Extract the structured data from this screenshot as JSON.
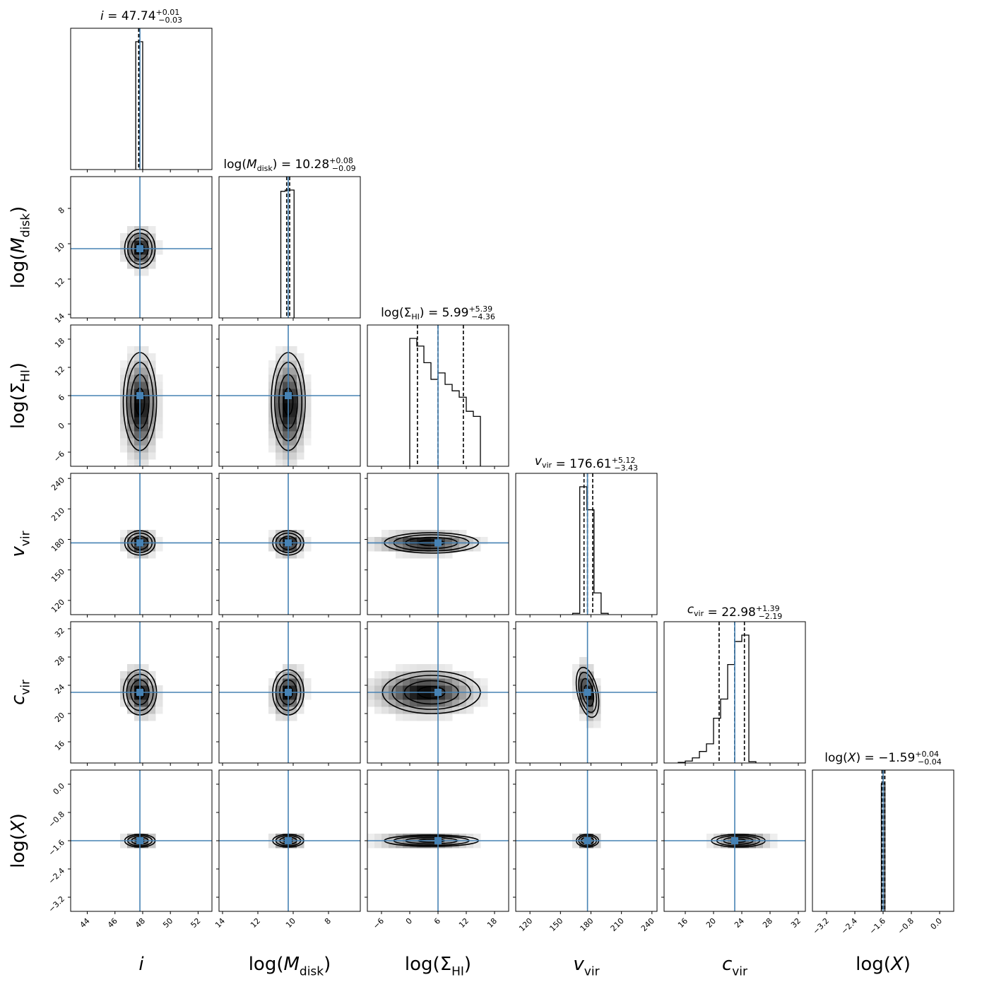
{
  "chart_data": {
    "type": "corner",
    "parameters": [
      {
        "key": "i",
        "axis_label": {
          "main": "i",
          "sub": "",
          "italic": true,
          "wrap": false
        },
        "title": {
          "prefix": "i",
          "sub": "",
          "italic": true,
          "wrap": false,
          "value": "47.74",
          "plus": "+0.01",
          "minus": "−0.03"
        },
        "median": 47.74,
        "err_plus": 0.01,
        "err_minus": 0.03,
        "truth": 47.8,
        "range": [
          42.8,
          53.0
        ],
        "inverted": false,
        "ticks": [
          44,
          46,
          48,
          50,
          52
        ],
        "tick_labels": [
          "44",
          "46",
          "48",
          "50",
          "52"
        ],
        "hist": {
          "edges": [
            47.5,
            48.0
          ],
          "counts": [
            1.0
          ]
        },
        "quantiles": [
          47.71,
          47.74,
          47.75
        ]
      },
      {
        "key": "log_Mdisk",
        "axis_label": {
          "main": "M",
          "sub": "disk",
          "italic": true,
          "wrap": true
        },
        "title": {
          "prefix": "M",
          "sub": "disk",
          "italic": true,
          "wrap": true,
          "value": "10.28",
          "plus": "+0.08",
          "minus": "−0.09"
        },
        "median": 10.28,
        "err_plus": 0.08,
        "err_minus": 0.09,
        "truth": 10.28,
        "range": [
          14.2,
          6.2
        ],
        "inverted": true,
        "ticks": [
          14,
          12,
          10,
          8
        ],
        "tick_labels": [
          "14",
          "12",
          "10",
          "8"
        ],
        "hist": {
          "edges": [
            10.7,
            10.45,
            9.95
          ],
          "counts": [
            0.99,
            1.0
          ]
        },
        "quantiles": [
          10.37,
          10.28,
          10.2
        ]
      },
      {
        "key": "log_SigmaHI",
        "axis_label": {
          "main": "Σ",
          "sub": "HI",
          "italic": false,
          "wrap": true
        },
        "title": {
          "prefix": "Σ",
          "sub": "HI",
          "italic": false,
          "wrap": true,
          "value": "5.99",
          "plus": "+5.39",
          "minus": "−4.36"
        },
        "median": 5.99,
        "err_plus": 5.39,
        "err_minus": 4.36,
        "truth": 6.0,
        "range": [
          -9.0,
          21.0
        ],
        "inverted": false,
        "ticks": [
          -6,
          0,
          6,
          12,
          18
        ],
        "tick_labels": [
          "−6",
          "0",
          "6",
          "12",
          "18"
        ],
        "hist": {
          "edges": [
            0,
            1.5,
            3,
            4.5,
            6,
            7.5,
            9,
            10.5,
            12,
            13.5,
            15
          ],
          "counts": [
            1.0,
            0.94,
            0.81,
            0.68,
            0.73,
            0.64,
            0.59,
            0.54,
            0.43,
            0.39
          ]
        },
        "quantiles": [
          1.63,
          5.99,
          11.38
        ]
      },
      {
        "key": "v_vir",
        "axis_label": {
          "main": "v",
          "sub": "vir",
          "italic": true,
          "wrap": false
        },
        "title": {
          "prefix": "v",
          "sub": "vir",
          "italic": true,
          "wrap": false,
          "value": "176.61",
          "plus": "+5.12",
          "minus": "−3.43"
        },
        "median": 176.61,
        "err_plus": 5.12,
        "err_minus": 3.43,
        "truth": 176.6,
        "range": [
          106.0,
          245.0
        ],
        "inverted": false,
        "ticks": [
          120,
          150,
          180,
          210,
          240
        ],
        "tick_labels": [
          "120",
          "150",
          "180",
          "210",
          "240"
        ],
        "hist": {
          "edges": [
            162,
            169,
            176,
            183,
            190,
            197
          ],
          "counts": [
            0.01,
            1.0,
            0.82,
            0.17,
            0.01
          ]
        },
        "quantiles": [
          173.18,
          176.61,
          181.73
        ]
      },
      {
        "key": "c_vir",
        "axis_label": {
          "main": "c",
          "sub": "vir",
          "italic": true,
          "wrap": false
        },
        "title": {
          "prefix": "c",
          "sub": "vir",
          "italic": true,
          "wrap": false,
          "value": "22.98",
          "plus": "+1.39",
          "minus": "−2.19"
        },
        "median": 22.98,
        "err_plus": 1.39,
        "err_minus": 2.19,
        "truth": 23.0,
        "range": [
          13.0,
          33.0
        ],
        "inverted": false,
        "ticks": [
          16,
          20,
          24,
          28,
          32
        ],
        "tick_labels": [
          "16",
          "20",
          "24",
          "28",
          "32"
        ],
        "hist": {
          "edges": [
            15,
            16,
            17,
            18,
            19,
            20,
            21,
            22,
            23,
            24,
            25,
            26
          ],
          "counts": [
            0.005,
            0.015,
            0.04,
            0.09,
            0.15,
            0.35,
            0.5,
            0.77,
            0.95,
            1.0,
            0.01
          ]
        },
        "quantiles": [
          20.79,
          22.98,
          24.37
        ]
      },
      {
        "key": "log_X",
        "axis_label": {
          "main": "X",
          "sub": "",
          "italic": true,
          "wrap": true
        },
        "title": {
          "prefix": "X",
          "sub": "",
          "italic": true,
          "wrap": true,
          "value": "−1.59",
          "plus": "+0.04",
          "minus": "−0.04"
        },
        "median": -1.59,
        "err_plus": 0.04,
        "err_minus": 0.04,
        "truth": -1.6,
        "range": [
          -3.6,
          0.4
        ],
        "inverted": false,
        "ticks": [
          -3.2,
          -2.4,
          -1.6,
          -0.8,
          0.0
        ],
        "tick_labels": [
          "−3.2",
          "−2.4",
          "−1.6",
          "−0.8",
          "0.0"
        ],
        "hist": {
          "edges": [
            -1.65,
            -1.55
          ],
          "counts": [
            1.0
          ]
        },
        "quantiles": [
          -1.63,
          -1.59,
          -1.55
        ]
      }
    ],
    "joint": [
      {
        "row": 1,
        "col": 0,
        "shape": "round",
        "sx": 0.55,
        "sy": 0.55,
        "skew": 0
      },
      {
        "row": 2,
        "col": 0,
        "shape": "tall",
        "sx": 0.6,
        "sy": 5.2,
        "skew": -2.5
      },
      {
        "row": 2,
        "col": 1,
        "shape": "tall",
        "sx": 0.48,
        "sy": 5.2,
        "skew": -2.5
      },
      {
        "row": 3,
        "col": 0,
        "shape": "round",
        "sx": 0.55,
        "sy": 6.0,
        "skew": 0
      },
      {
        "row": 3,
        "col": 1,
        "shape": "round",
        "sx": 0.44,
        "sy": 6.0,
        "skew": 0
      },
      {
        "row": 3,
        "col": 2,
        "shape": "wide",
        "sx": 5.0,
        "sy": 5.0,
        "skew": -2.8
      },
      {
        "row": 4,
        "col": 0,
        "shape": "drop",
        "sx": 0.6,
        "sy": 1.6,
        "skew": 0.8
      },
      {
        "row": 4,
        "col": 1,
        "shape": "drop",
        "sx": 0.44,
        "sy": 1.6,
        "skew": 0.8
      },
      {
        "row": 4,
        "col": 2,
        "shape": "wide",
        "sx": 5.2,
        "sy": 1.5,
        "skew": -2.8
      },
      {
        "row": 4,
        "col": 3,
        "shape": "tilt",
        "sx": 5.0,
        "sy": 1.8,
        "skew": 0
      },
      {
        "row": 5,
        "col": 0,
        "shape": "round",
        "sx": 0.55,
        "sy": 0.09,
        "skew": 0
      },
      {
        "row": 5,
        "col": 1,
        "shape": "round",
        "sx": 0.44,
        "sy": 0.09,
        "skew": 0
      },
      {
        "row": 5,
        "col": 2,
        "shape": "wide",
        "sx": 5.0,
        "sy": 0.08,
        "skew": -2.8
      },
      {
        "row": 5,
        "col": 3,
        "shape": "round",
        "sx": 5.5,
        "sy": 0.09,
        "skew": 0
      },
      {
        "row": 5,
        "col": 4,
        "shape": "wide",
        "sx": 1.9,
        "sy": 0.09,
        "skew": 1.0
      }
    ],
    "truth_color": "#4682b4",
    "hist_color": "#000000",
    "quantile_style": "dashed",
    "title": "",
    "grid": false,
    "legend": "none"
  }
}
